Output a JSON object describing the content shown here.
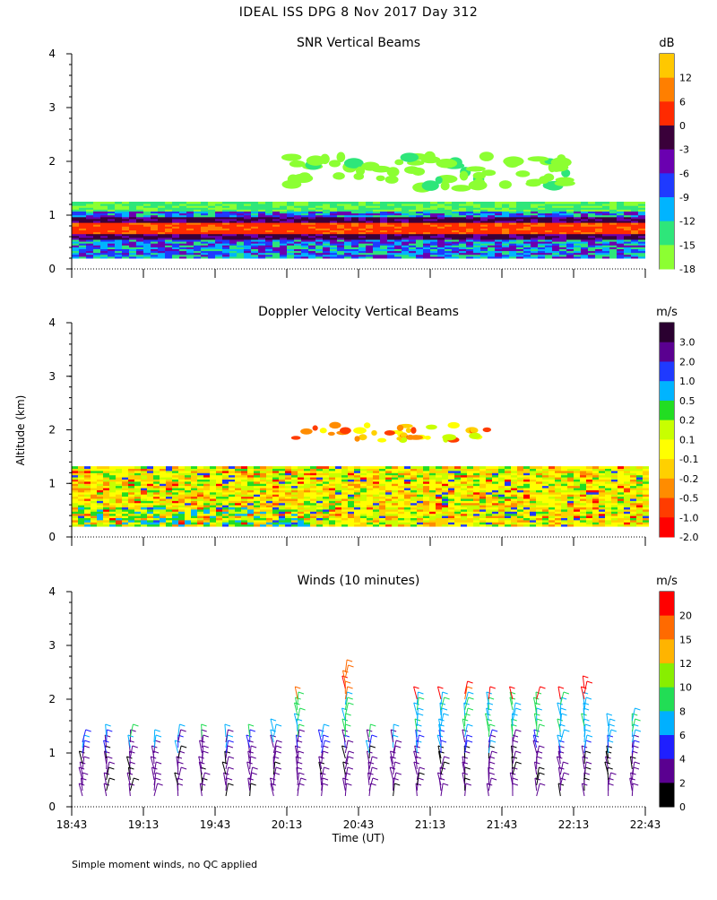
{
  "figure_title": "IDEAL ISS DPG   8 Nov 2017 Day 312",
  "footnote": "Simple moment winds, no QC applied",
  "shared_y_axis_label": "Altitude (km)",
  "shared_x_axis_label": "Time (UT)",
  "x_tick_labels": [
    "18:43",
    "19:13",
    "19:43",
    "20:13",
    "20:43",
    "21:13",
    "21:43",
    "22:13",
    "22:43"
  ],
  "chart_data": [
    {
      "type": "heatmap",
      "title": "SNR Vertical Beams",
      "xlabel": "",
      "ylabel": "Altitude (km)",
      "xlim": [
        "18:43",
        "22:43"
      ],
      "ylim": [
        0,
        4
      ],
      "y_ticks": [
        "0",
        "1",
        "2",
        "3",
        "4"
      ],
      "colorbar": {
        "unit": "dB",
        "tick_labels": [
          "12",
          "6",
          "0",
          "-3",
          "-6",
          "-9",
          "-12",
          "-15",
          "-18"
        ],
        "colors": [
          "#ffc800",
          "#ff7f00",
          "#ff2a00",
          "#3a003a",
          "#6a00b0",
          "#1f3aff",
          "#00b4ff",
          "#2ee67a",
          "#8cff32"
        ]
      },
      "layers": [
        {
          "label": "surface layer",
          "bottom_km": 0.2,
          "top_km": 1.25,
          "dominant": "-15 to 0"
        },
        {
          "label": "peak SNR band",
          "altitude_km": 0.75,
          "value_db": 0
        },
        {
          "label": "elevated echoes",
          "bottom_km": 1.5,
          "top_km": 2.1,
          "start": "20:13",
          "end": "22:13",
          "value_db": -18
        }
      ]
    },
    {
      "type": "heatmap",
      "title": "Doppler Velocity Vertical Beams",
      "xlabel": "",
      "ylabel": "Altitude (km)",
      "xlim": [
        "18:43",
        "22:43"
      ],
      "ylim": [
        0,
        4
      ],
      "y_ticks": [
        "0",
        "1",
        "2",
        "3",
        "4"
      ],
      "colorbar": {
        "unit": "m/s",
        "tick_labels": [
          "3.0",
          "2.0",
          "1.0",
          "0.5",
          "0.2",
          "0.1",
          "-0.1",
          "-0.2",
          "-0.5",
          "-1.0",
          "-2.0"
        ],
        "colors": [
          "#2a0030",
          "#5a0090",
          "#1f3aff",
          "#00b4ff",
          "#22dd22",
          "#c8ff00",
          "#ffff00",
          "#ffd000",
          "#ff8c00",
          "#ff3c00",
          "#ff0000"
        ]
      },
      "layers": [
        {
          "label": "surface layer",
          "bottom_km": 0.2,
          "top_km": 1.3,
          "dominant": "-0.2 to 0.2"
        },
        {
          "label": "elevated echoes",
          "bottom_km": 1.8,
          "top_km": 2.1,
          "start": "20:13",
          "end": "21:43"
        }
      ]
    },
    {
      "type": "scatter",
      "title": "Winds (10 minutes)",
      "xlabel": "Time (UT)",
      "ylabel": "Altitude (km)",
      "xlim": [
        "18:43",
        "22:43"
      ],
      "ylim": [
        0,
        4
      ],
      "y_ticks": [
        "0",
        "1",
        "2",
        "3",
        "4"
      ],
      "colorbar": {
        "unit": "m/s",
        "tick_labels": [
          "20",
          "15",
          "12",
          "10",
          "8",
          "6",
          "4",
          "2",
          "0"
        ],
        "colors": [
          "#ff0000",
          "#ff6a00",
          "#ffb400",
          "#88ee00",
          "#22dd55",
          "#00b0ff",
          "#1f1fff",
          "#5a0090",
          "#000000"
        ]
      },
      "profile_times": [
        "18:43",
        "18:53",
        "19:03",
        "19:13",
        "19:23",
        "19:33",
        "19:43",
        "19:53",
        "20:03",
        "20:13",
        "20:23",
        "20:33",
        "20:43",
        "20:53",
        "21:03",
        "21:13",
        "21:23",
        "21:33",
        "21:43",
        "21:53",
        "22:03",
        "22:13",
        "22:23",
        "22:33"
      ],
      "profile_tops_km": [
        1.2,
        1.4,
        1.3,
        1.2,
        1.4,
        1.4,
        1.3,
        1.3,
        1.5,
        2.1,
        1.3,
        2.6,
        1.3,
        1.3,
        2.1,
        2.1,
        2.2,
        2.1,
        2.1,
        2.1,
        2.1,
        2.3,
        1.6,
        1.7
      ]
    }
  ]
}
